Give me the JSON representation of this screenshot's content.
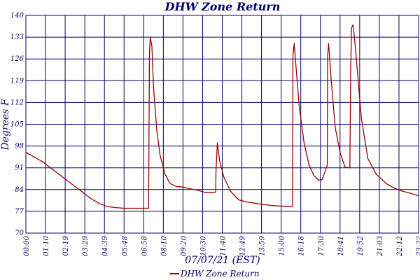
{
  "chart_data": {
    "type": "line",
    "title": "DHW Zone Return",
    "xlabel": "07/07/21 (EST)",
    "ylabel": "Degrees F",
    "ylim": [
      70,
      140
    ],
    "yticks": [
      70,
      77,
      84,
      91,
      98,
      105,
      112,
      119,
      126,
      133,
      140
    ],
    "xlim": [
      0,
      24
    ],
    "xticks": [
      "00:00",
      "01:10",
      "02:19",
      "03:29",
      "04:39",
      "05:48",
      "06:58",
      "08:10",
      "09:20",
      "10:30",
      "11:40",
      "12:49",
      "13:59",
      "15:00",
      "16:18",
      "17:30",
      "18:41",
      "19:52",
      "21:03",
      "22:12",
      "23:22"
    ],
    "grid": true,
    "legend_position": "bottom",
    "colors": {
      "series": "#990000",
      "grid": "#000066",
      "text": "#000066"
    },
    "series": [
      {
        "name": "DHW Zone Return",
        "x": [
          0.0,
          0.5,
          1.0,
          1.5,
          2.0,
          2.5,
          3.0,
          3.5,
          4.0,
          4.5,
          5.0,
          5.5,
          6.0,
          6.5,
          7.0,
          7.5,
          7.55,
          7.6,
          7.7,
          7.8,
          8.0,
          8.2,
          8.5,
          8.8,
          9.2,
          9.6,
          10.0,
          10.5,
          11.0,
          11.3,
          11.6,
          11.62,
          11.7,
          11.85,
          12.1,
          12.5,
          13.0,
          13.5,
          14.0,
          14.5,
          15.0,
          15.5,
          16.0,
          16.3,
          16.32,
          16.4,
          16.5,
          16.7,
          17.0,
          17.3,
          17.6,
          17.9,
          18.1,
          18.3,
          18.42,
          18.44,
          18.5,
          18.65,
          18.9,
          19.2,
          19.5,
          19.8,
          19.85,
          19.9,
          20.0,
          20.15,
          20.5,
          20.9,
          21.4,
          22.0,
          22.5,
          23.0,
          23.5,
          24.0
        ],
        "y": [
          96.0,
          94.5,
          93.0,
          91.0,
          89.0,
          87.0,
          85.0,
          83.0,
          81.0,
          79.5,
          78.5,
          78.2,
          78.0,
          78.0,
          78.0,
          78.0,
          128.0,
          133.0,
          130.0,
          117.0,
          103.0,
          95.0,
          89.0,
          86.0,
          85.0,
          84.8,
          84.3,
          83.8,
          83.0,
          83.0,
          83.2,
          90.0,
          99.0,
          93.0,
          88.0,
          83.5,
          80.7,
          80.0,
          79.6,
          79.2,
          78.9,
          78.7,
          78.6,
          78.6,
          127.0,
          131.0,
          124.0,
          111.0,
          99.0,
          92.0,
          88.5,
          87.0,
          87.2,
          90.0,
          92.0,
          127.0,
          131.0,
          120.0,
          104.0,
          96.0,
          91.2,
          91.0,
          122.0,
          136.0,
          137.0,
          129.0,
          107.0,
          94.0,
          89.0,
          86.0,
          84.5,
          83.5,
          82.8,
          82.0
        ]
      }
    ]
  }
}
